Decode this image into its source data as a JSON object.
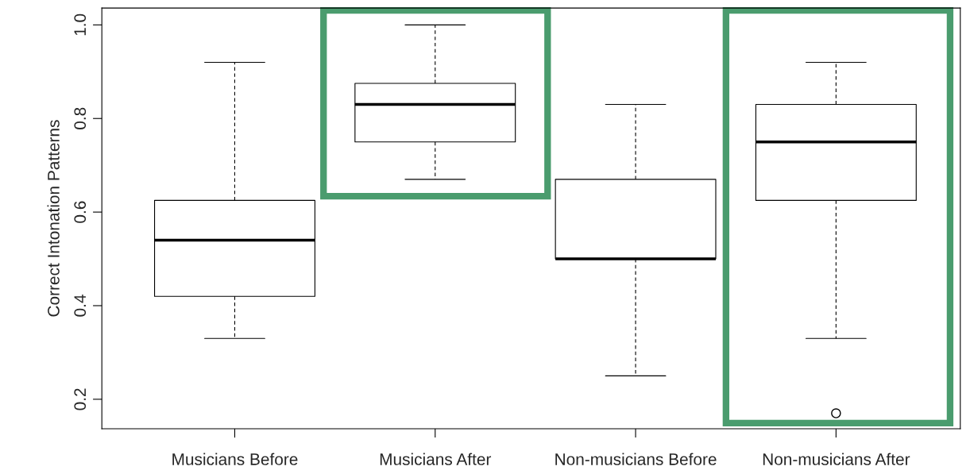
{
  "chart_data": {
    "type": "box",
    "ylabel": "Correct Intonation Patterns",
    "categories": [
      "Musicians Before",
      "Musicians After",
      "Non-musicians Before",
      "Non-musicians After"
    ],
    "boxes": [
      {
        "low": 0.33,
        "q1": 0.42,
        "median": 0.54,
        "q3": 0.625,
        "high": 0.92
      },
      {
        "low": 0.67,
        "q1": 0.75,
        "median": 0.83,
        "q3": 0.875,
        "high": 1.0
      },
      {
        "low": 0.25,
        "q1": 0.5,
        "median": 0.5,
        "q3": 0.67,
        "high": 0.83
      },
      {
        "low": 0.33,
        "q1": 0.625,
        "median": 0.75,
        "q3": 0.83,
        "high": 0.92,
        "outliers": [
          0.17
        ]
      }
    ],
    "ylim": [
      0.137,
      1.036
    ],
    "yticks": [
      {
        "value": 0.2,
        "label": "0.2"
      },
      {
        "value": 0.4,
        "label": "0.4"
      },
      {
        "value": 0.6,
        "label": "0.6"
      },
      {
        "value": 0.8,
        "label": "0.8"
      },
      {
        "value": 1.0,
        "label": "1.0"
      }
    ],
    "grid": false
  }
}
